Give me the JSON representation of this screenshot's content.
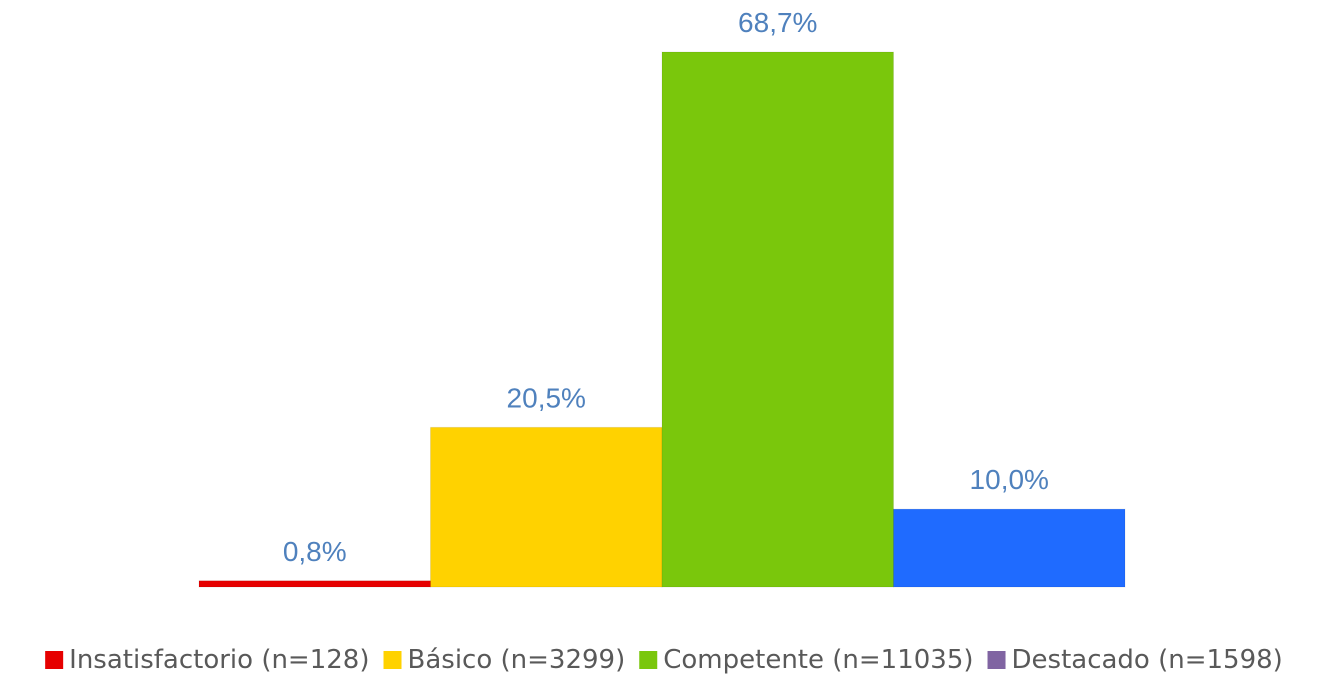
{
  "chart_data": {
    "type": "bar",
    "categories": [
      "Insatisfactorio (n=128)",
      "Básico (n=3299)",
      "Competente (n=11035)",
      "Destacado (n=1598)"
    ],
    "values": [
      0.8,
      20.5,
      68.7,
      10.0
    ],
    "data_labels": [
      "0,8%",
      "20,5%",
      "68,7%",
      "10,0%"
    ],
    "bar_colors": [
      "#e60000",
      "#ffd200",
      "#7ac70c",
      "#1f6bff"
    ],
    "legend_colors": [
      "#e60000",
      "#ffd200",
      "#7ac70c",
      "#8064a2"
    ],
    "value_label_color": "#4f81bd",
    "ylim": [
      0,
      70
    ],
    "legend_position": "bottom",
    "grid": false,
    "title": "",
    "xlabel": "",
    "ylabel": ""
  }
}
